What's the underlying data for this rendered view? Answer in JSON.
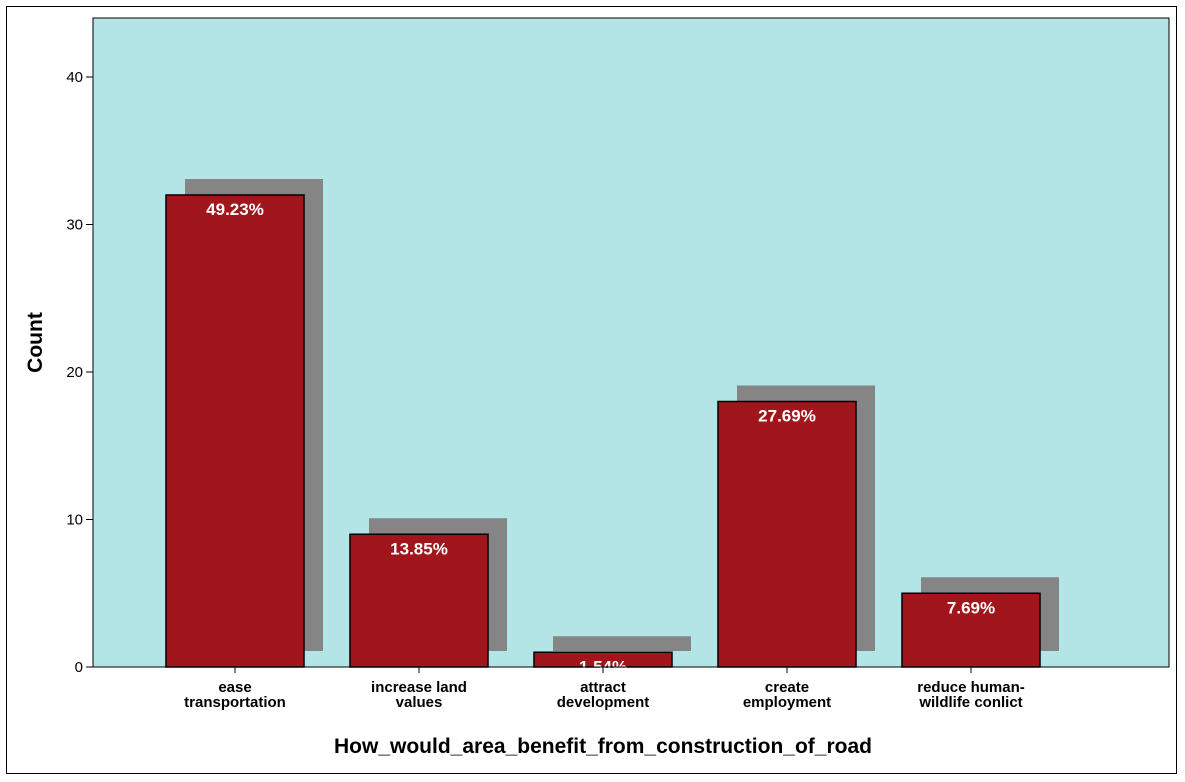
{
  "chart_data": {
    "type": "bar",
    "categories": [
      [
        "ease",
        "transportation"
      ],
      [
        "increase land",
        "values"
      ],
      [
        "attract",
        "development"
      ],
      [
        "create",
        "employment"
      ],
      [
        "reduce human-",
        "wildlife conlict"
      ]
    ],
    "values": [
      32,
      9,
      1,
      18,
      5
    ],
    "data_labels": [
      "49.23%",
      "13.85%",
      "1.54%",
      "27.69%",
      "7.69%"
    ],
    "xlabel": "How_would_area_benefit_from_construction_of_road",
    "ylabel": "Count",
    "ylim": [
      0,
      44
    ],
    "yticks": [
      0,
      10,
      20,
      30,
      40
    ],
    "grid": false,
    "colors": {
      "plot_background": "#b3e5e6",
      "bar_fill": "#a0161c",
      "bar_shadow": "#858585",
      "bar_outline": "#000000"
    }
  }
}
